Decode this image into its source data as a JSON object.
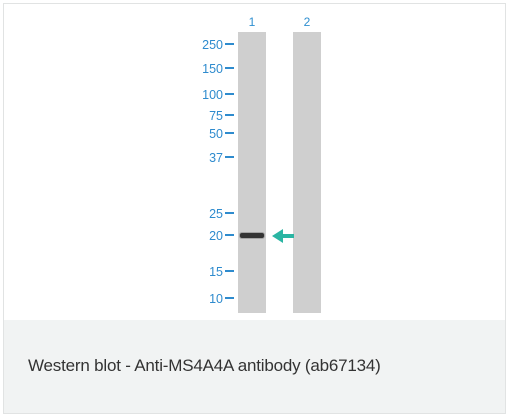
{
  "figure": {
    "lanes": [
      {
        "label": "1",
        "has_band": true
      },
      {
        "label": "2",
        "has_band": false
      }
    ],
    "markers": [
      "250",
      "150",
      "100",
      "75",
      "50",
      "37",
      "25",
      "20",
      "15",
      "10"
    ],
    "band_marker": "20",
    "colors": {
      "lane": "#cfcfcf",
      "band": "#222222",
      "arrow": "#2ab5a3",
      "label_blue": "#2e8bce",
      "caption_bg": "#f1f3f3"
    },
    "icon": "teal-arrow-pointing-left"
  },
  "caption": "Western blot - Anti-MS4A4A antibody (ab67134)"
}
